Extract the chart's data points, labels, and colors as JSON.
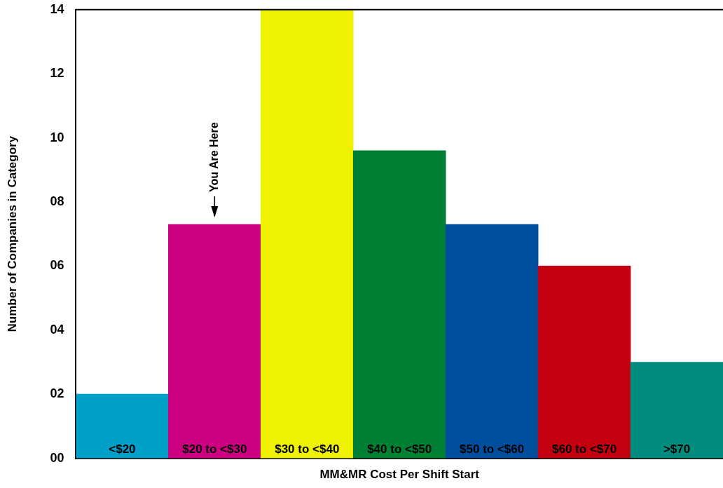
{
  "chart_data": {
    "type": "bar",
    "xlabel": "MM&MR Cost Per Shift Start",
    "ylabel": "Number of Companies in Category",
    "categories": [
      "<$20",
      "$20 to <$30",
      "$30 to <$40",
      "$40 to <$50",
      "$50 to <$60",
      "$60 to <$70",
      ">$70"
    ],
    "values": [
      2,
      7.3,
      14,
      9.6,
      7.3,
      6,
      3
    ],
    "colors": [
      "#00a0c8",
      "#cc0080",
      "#eef200",
      "#008033",
      "#004f9f",
      "#c4000f",
      "#008c7e"
    ],
    "ylim": [
      0,
      14
    ],
    "yticks": [
      {
        "value": 0,
        "label": "00"
      },
      {
        "value": 2,
        "label": "02"
      },
      {
        "value": 4,
        "label": "04"
      },
      {
        "value": 6,
        "label": "06"
      },
      {
        "value": 8,
        "label": "08"
      },
      {
        "value": 10,
        "label": "10"
      },
      {
        "value": 12,
        "label": "12"
      },
      {
        "value": 14,
        "label": "14"
      }
    ],
    "annotations": [
      {
        "text": "You Are Here",
        "x": "$20 to <$30",
        "y": 7.3
      }
    ],
    "grid": false,
    "legend": false
  }
}
